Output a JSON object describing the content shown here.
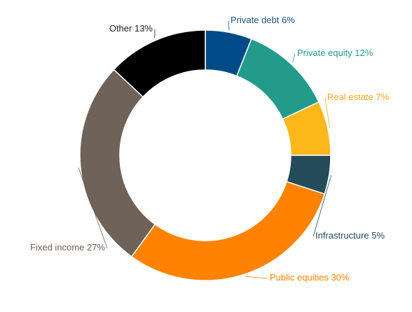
{
  "chart_data": {
    "type": "donut",
    "categories": [
      "Private debt",
      "Private equity",
      "Real estate",
      "Infrastructure",
      "Public equities",
      "Fixed income",
      "Other"
    ],
    "values": [
      6,
      12,
      7,
      5,
      30,
      27,
      13
    ],
    "value_labels": [
      "6%",
      "12%",
      "7%",
      "5%",
      "30%",
      "27%",
      "13%"
    ],
    "colors": [
      "#004b87",
      "#239b8b",
      "#fdb71a",
      "#244b5a",
      "#ff8200",
      "#6e6259",
      "#000000"
    ],
    "label_colors": [
      "#1f4f7f",
      "#239b8b",
      "#f5a623",
      "#244b5a",
      "#ff8200",
      "#6e6259",
      "#222222"
    ]
  }
}
